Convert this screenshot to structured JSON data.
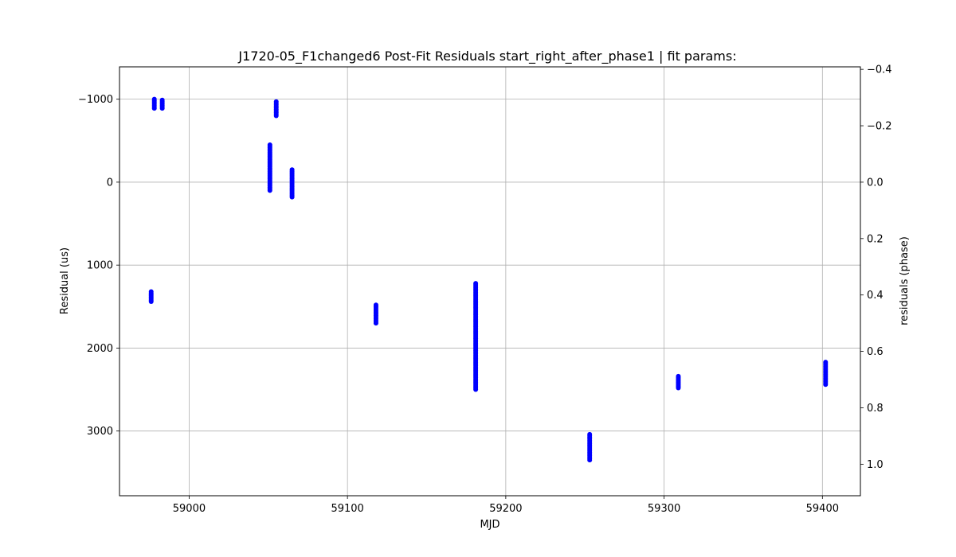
{
  "chart_data": {
    "type": "scatter",
    "title": "J1720-05_F1changed6 Post-Fit Residuals start_right_after_phase1 | fit params:",
    "xlabel": "MJD",
    "ylabel": "Residual (us)",
    "ylabel_right": "residuals (phase)",
    "xlim": [
      58956,
      59424
    ],
    "ylim": [
      3780,
      -1390
    ],
    "ylim_right": [
      1.1118,
      -0.4089
    ],
    "y_inverted": true,
    "grid": true,
    "marker_color": "#0000ff",
    "x_ticks": [
      59000,
      59100,
      59200,
      59300,
      59400
    ],
    "x_tick_labels": [
      "59000",
      "59100",
      "59200",
      "59300",
      "59400"
    ],
    "y_ticks": [
      -1000,
      0,
      1000,
      2000,
      3000
    ],
    "y_tick_labels": [
      "−1000",
      "0",
      "1000",
      "2000",
      "3000"
    ],
    "y_right_ticks": [
      -0.4,
      -0.2,
      0.0,
      0.2,
      0.4,
      0.6,
      0.8,
      1.0
    ],
    "y_right_tick_labels": [
      "−0.4",
      "−0.2",
      "0.0",
      "0.2",
      "0.4",
      "0.6",
      "0.8",
      "1.0"
    ],
    "clusters": [
      {
        "x": 58976,
        "y_min": 1320,
        "y_max": 1440
      },
      {
        "x": 58978,
        "y_min": -1000,
        "y_max": -890
      },
      {
        "x": 58983,
        "y_min": -990,
        "y_max": -890
      },
      {
        "x": 59051,
        "y_min": 100,
        "y_max": -450
      },
      {
        "x": 59055,
        "y_min": -970,
        "y_max": -800
      },
      {
        "x": 59065,
        "y_min": -150,
        "y_max": 180
      },
      {
        "x": 59118,
        "y_min": 1480,
        "y_max": 1700
      },
      {
        "x": 59181,
        "y_min": 1220,
        "y_max": 2500
      },
      {
        "x": 59253,
        "y_min": 3040,
        "y_max": 3350
      },
      {
        "x": 59309,
        "y_min": 2340,
        "y_max": 2480
      },
      {
        "x": 59402,
        "y_min": 2170,
        "y_max": 2440
      }
    ]
  }
}
